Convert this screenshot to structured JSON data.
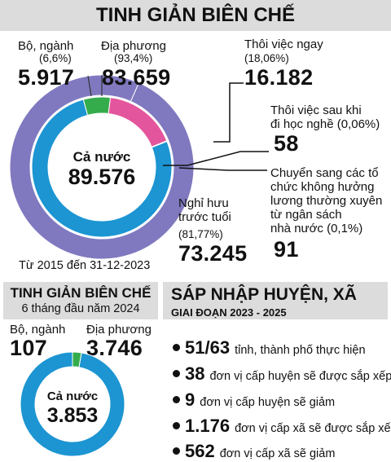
{
  "chart_data": [
    {
      "type": "pie",
      "title": "TINH GIẢN BIÊN CHẾ",
      "subtitle": "Từ 2015 đến 31-12-2023",
      "center_label": "Cả nước",
      "center_value": "89.576",
      "outer_ring": [
        {
          "name": "Bộ, ngành",
          "percent_label": "(6,6%)",
          "value_label": "5.917",
          "value": 5917,
          "color": "#8079c0"
        },
        {
          "name": "Địa phương",
          "percent_label": "(93,4%)",
          "value_label": "83.659",
          "value": 83659,
          "color": "#8079c0"
        }
      ],
      "inner_ring": [
        {
          "name": "Thôi việc ngay",
          "percent_label": "(18,06%)",
          "value_label": "16.182",
          "value": 16182,
          "color": "#e3559c"
        },
        {
          "name": "Thôi việc sau khi đi học nghề",
          "percent_label": "(0,06%)",
          "value_label": "58",
          "value": 58,
          "color": "#3a3790"
        },
        {
          "name": "Chuyển sang các tổ chức không hưởng lương thường xuyên từ ngân sách nhà nước",
          "percent_label": "(0,1%)",
          "value_label": "91",
          "value": 91,
          "color": "#3a3790"
        },
        {
          "name": "Nghỉ hưu trước tuổi",
          "percent_label": "(81,77%)",
          "value_label": "73.245",
          "value": 73245,
          "color": "#1c95d2"
        },
        {
          "name": "Bộ, ngành (tinh giản)",
          "value": 5917,
          "color": "#35ac4c"
        }
      ]
    },
    {
      "type": "pie",
      "title": "TINH GIẢN BIÊN CHẾ",
      "subtitle": "6 tháng đầu năm 2024",
      "center_label": "Cả nước",
      "center_value": "3.853",
      "segments": [
        {
          "name": "Bộ, ngành",
          "value_label": "107",
          "value": 107,
          "color": "#35ac4c"
        },
        {
          "name": "Địa phương",
          "value_label": "3.746",
          "value": 3746,
          "color": "#1c95d2"
        }
      ]
    }
  ],
  "labels1": {
    "bo_nganh": "Bộ, ngành",
    "bo_nganh_pct": "(6,6%)",
    "bo_nganh_val": "5.917",
    "dia_phuong": "Địa phương",
    "dia_phuong_pct": "(93,4%)",
    "dia_phuong_val": "83.659",
    "thoi_viec": "Thôi việc ngay",
    "thoi_viec_pct": "(18,06%)",
    "thoi_viec_val": "16.182",
    "hoc_nghe_1": "Thôi việc sau khi",
    "hoc_nghe_2": "đi học nghề (0,06%)",
    "hoc_nghe_val": "58",
    "chuyen_1": "Chuyển sang các tổ",
    "chuyen_2": "chức không hưởng",
    "chuyen_3": "lương thường xuyên",
    "chuyen_4": "từ ngân sách",
    "chuyen_5": "nhà nước (0,1%)",
    "chuyen_val": "91",
    "nghi_huu_1": "Nghỉ hưu",
    "nghi_huu_2": "trước tuổi",
    "nghi_huu_pct": "(81,77%)",
    "nghi_huu_val": "73.245"
  },
  "labels2": {
    "bo_nganh": "Bộ, ngành",
    "bo_nganh_val": "107",
    "dia_phuong": "Địa phương",
    "dia_phuong_val": "3.746"
  },
  "merge": {
    "title": "SÁP NHẬP HUYỆN, XÃ",
    "subtitle": "GIAI ĐOẠN 2023 - 2025",
    "items": [
      {
        "num": "51/63",
        "text": "tỉnh, thành phố thực hiện"
      },
      {
        "num": "38",
        "text": "đơn vị cấp huyện sẽ được sắp xếp"
      },
      {
        "num": "9",
        "text": "đơn vị cấp huyện sẽ giảm"
      },
      {
        "num": "1.176",
        "text": "đơn vị cấp xã sẽ được sắp xếp"
      },
      {
        "num": "562",
        "text": "đơn vị cấp xã sẽ giảm"
      }
    ]
  }
}
